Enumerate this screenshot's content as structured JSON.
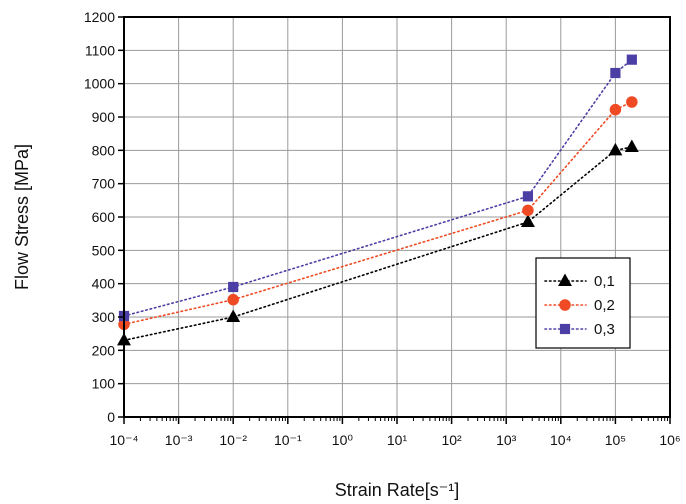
{
  "chart_data": {
    "type": "line",
    "xscale": "log",
    "xlabel": "Strain Rate[s⁻¹]",
    "ylabel": "Flow Stress [MPa]",
    "xlim": [
      0.0001,
      1000000
    ],
    "ylim": [
      0,
      1200
    ],
    "grid": true,
    "legend_position": "center-right",
    "x_tick_labels": [
      "10⁻⁴",
      "10⁻³",
      "10⁻²",
      "10⁻¹",
      "10⁰",
      "10¹",
      "10²",
      "10³",
      "10⁴",
      "10⁵",
      "10⁶"
    ],
    "y_ticks": [
      0,
      100,
      200,
      300,
      400,
      500,
      600,
      700,
      800,
      900,
      1000,
      1100,
      1200
    ],
    "series": [
      {
        "name": "0,1",
        "marker": "triangle",
        "color": "#000000",
        "points": [
          [
            0.0001,
            230
          ],
          [
            0.01,
            300
          ],
          [
            2500,
            585
          ],
          [
            100000,
            800
          ],
          [
            200000,
            810
          ]
        ]
      },
      {
        "name": "0,2",
        "marker": "circle",
        "color": "#ef4a23",
        "points": [
          [
            0.0001,
            278
          ],
          [
            0.01,
            352
          ],
          [
            2500,
            620
          ],
          [
            100000,
            922
          ],
          [
            200000,
            945
          ]
        ]
      },
      {
        "name": "0,3",
        "marker": "square",
        "color": "#4b3fa6",
        "points": [
          [
            0.0001,
            303
          ],
          [
            0.01,
            390
          ],
          [
            2500,
            662
          ],
          [
            100000,
            1032
          ],
          [
            200000,
            1072
          ]
        ]
      }
    ]
  }
}
